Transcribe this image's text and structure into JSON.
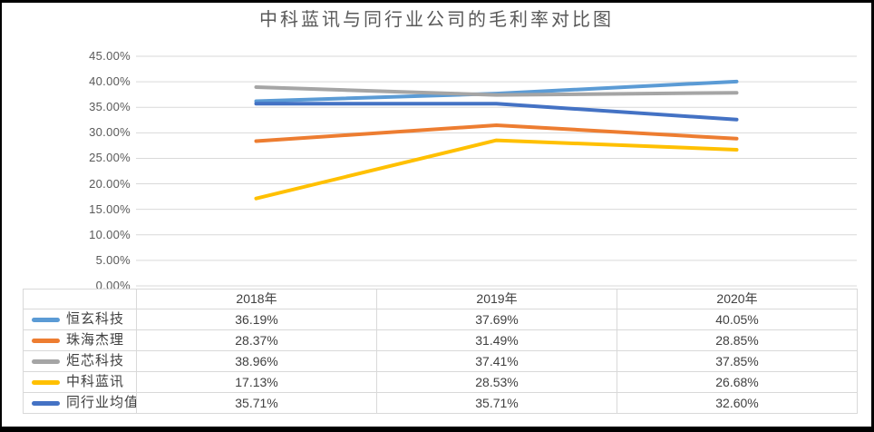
{
  "title": "中科蓝讯与同行业公司的毛利率对比图",
  "chart_data": {
    "type": "line",
    "title": "中科蓝讯与同行业公司的毛利率对比图",
    "categories": [
      "2018年",
      "2019年",
      "2020年"
    ],
    "series": [
      {
        "name": "恒玄科技",
        "color": "#5B9BD5",
        "values": [
          36.19,
          37.69,
          40.05
        ]
      },
      {
        "name": "珠海杰理",
        "color": "#ED7D31",
        "values": [
          28.37,
          31.49,
          28.85
        ]
      },
      {
        "name": "炬芯科技",
        "color": "#A5A5A5",
        "values": [
          38.96,
          37.41,
          37.85
        ]
      },
      {
        "name": "中科蓝讯",
        "color": "#FFC000",
        "values": [
          17.13,
          28.53,
          26.68
        ]
      },
      {
        "name": "同行业均值",
        "color": "#4472C4",
        "values": [
          35.71,
          35.71,
          32.6
        ]
      }
    ],
    "ylim": [
      0,
      45
    ],
    "ytick_step": 5,
    "ytick_labels": [
      "0.00%",
      "5.00%",
      "10.00%",
      "15.00%",
      "20.00%",
      "25.00%",
      "30.00%",
      "35.00%",
      "40.00%",
      "45.00%"
    ],
    "value_format": "percent-2dp",
    "grid": "horizontal",
    "legend_position": "data-table-left",
    "data_table_shown": true
  },
  "colors": {
    "gridline": "#D9D9D9",
    "table_border": "#D9D9D9",
    "axis_text": "#595959",
    "title_text": "#595959",
    "table_text": "#404040",
    "frame_border": "#000000",
    "background": "#FFFFFF"
  }
}
